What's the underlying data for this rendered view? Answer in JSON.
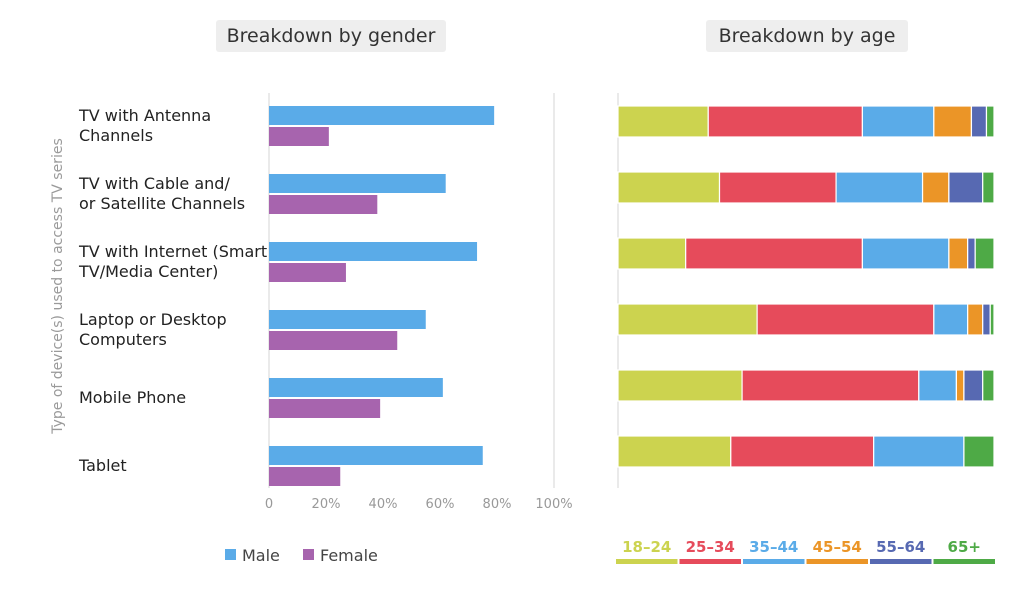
{
  "chart_data": [
    {
      "type": "bar",
      "orientation": "horizontal",
      "title": "Breakdown by gender",
      "ylabel": "Type of device(s) used to access TV series",
      "categories": [
        [
          "TV with Antenna",
          "Channels"
        ],
        [
          "TV with Cable and/",
          "or Satellite Channels"
        ],
        [
          "TV with Internet (Smart",
          " TV/Media Center)"
        ],
        [
          "Laptop or Desktop",
          "Computers"
        ],
        [
          "Mobile Phone"
        ],
        [
          "Tablet"
        ]
      ],
      "xlim": [
        0,
        100
      ],
      "xticks": [
        "0",
        "20%",
        "40%",
        "60%",
        "80%",
        "100%"
      ],
      "series": [
        {
          "name": "Male",
          "color": "#5aabe8",
          "values": [
            79,
            62,
            73,
            55,
            61,
            75
          ]
        },
        {
          "name": "Female",
          "color": "#a764ae",
          "values": [
            21,
            38,
            27,
            45,
            39,
            25
          ]
        }
      ],
      "legend": "bottom"
    },
    {
      "type": "bar",
      "orientation": "horizontal",
      "stacked": true,
      "title": "Breakdown by age",
      "xlim": [
        0,
        100
      ],
      "series": [
        {
          "name": "18–24",
          "color": "#ccd34f",
          "values": [
            24,
            27,
            18,
            37,
            33,
            30
          ]
        },
        {
          "name": "25–34",
          "color": "#e64b5b",
          "values": [
            41,
            31,
            47,
            47,
            47,
            38
          ]
        },
        {
          "name": "35–44",
          "color": "#5aabe8",
          "values": [
            19,
            23,
            23,
            9,
            10,
            24
          ]
        },
        {
          "name": "45–54",
          "color": "#eb9527",
          "values": [
            10,
            7,
            5,
            4,
            2,
            0
          ]
        },
        {
          "name": "55–64",
          "color": "#5769b2",
          "values": [
            4,
            9,
            2,
            2,
            5,
            0
          ]
        },
        {
          "name": "65+",
          "color": "#4eaa46",
          "values": [
            2,
            3,
            5,
            1,
            3,
            8
          ]
        }
      ],
      "legend": "bottom"
    }
  ]
}
